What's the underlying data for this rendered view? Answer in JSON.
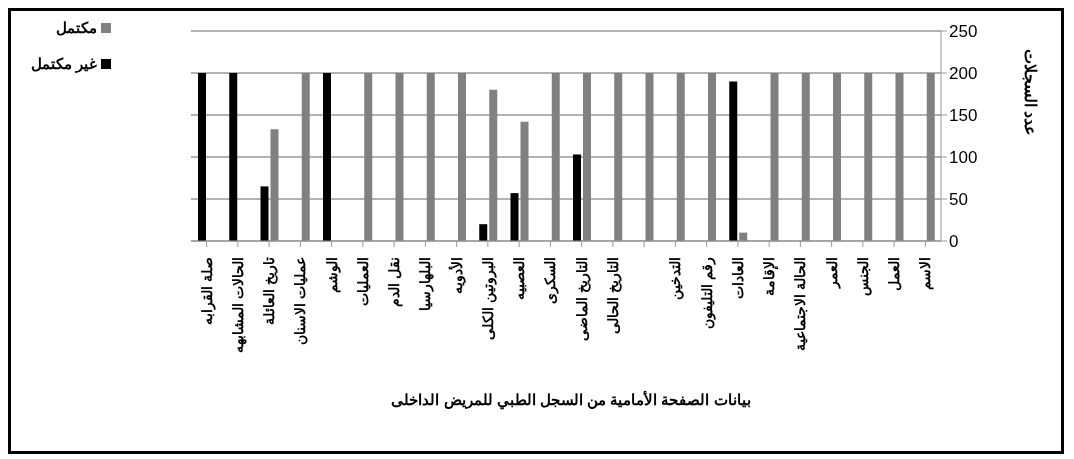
{
  "chart_data": {
    "type": "bar",
    "title": "بيانات الصفحة الأمامية من السجل الطبي للمريض الداخلى",
    "ylabel": "عدد السجلات",
    "categories": [
      "صلة القرابه",
      "الحالات المشابهه",
      "تاريخ العائلة",
      "عمليات الاسنان",
      "الوشم",
      "العمليات",
      "نقل الدم",
      "البلهارسيا",
      "الأدويه",
      "البروتين الكلى",
      "العصبيه",
      "السكرى",
      "التاريخ الماضى",
      "التاريخ الحالى",
      null,
      "التدخين",
      "رقم التليفون",
      "العادات",
      "الإقامة",
      "الحالة الاجتماعية",
      "العمر",
      "الجنس",
      "العمل",
      "الاسم"
    ],
    "series": [
      {
        "name": "غير مكتمل",
        "color": "#000000",
        "values": [
          200,
          200,
          65,
          0,
          200,
          0,
          0,
          0,
          0,
          20,
          57,
          0,
          103,
          0,
          0,
          0,
          0,
          190,
          0,
          0,
          0,
          0,
          0,
          0
        ]
      },
      {
        "name": "مكتمل",
        "color": "#808080",
        "values": [
          0,
          0,
          133,
          200,
          0,
          200,
          200,
          200,
          200,
          180,
          142,
          200,
          200,
          200,
          200,
          200,
          200,
          10,
          200,
          200,
          200,
          200,
          200,
          200
        ]
      }
    ],
    "ylim": [
      0,
      250
    ],
    "yticks": [
      0,
      50,
      100,
      150,
      200,
      250
    ],
    "grid": "y",
    "legend": "top left"
  }
}
